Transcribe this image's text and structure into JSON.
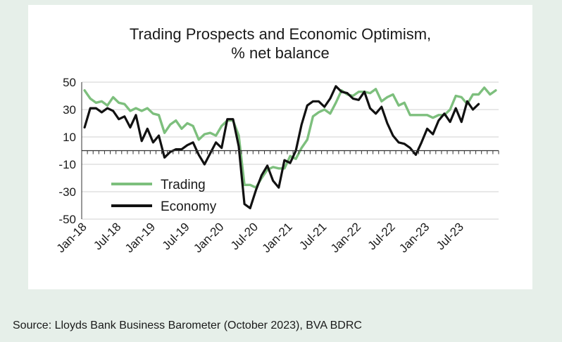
{
  "chart_data": {
    "type": "line",
    "title": [
      "Trading Prospects and Economic  Optimism,",
      "% net balance"
    ],
    "ylim": [
      -50,
      50
    ],
    "y_ticks": [
      50,
      30,
      10,
      -10,
      -30,
      -50
    ],
    "x_tick_labels": [
      "Jan-18",
      "Jul-18",
      "Jan-19",
      "Jul-19",
      "Jan-20",
      "Jul-20",
      "Jan-21",
      "Jul-21",
      "Jan-22",
      "Jul-22",
      "Jan-23",
      "Jul-23"
    ],
    "x_start": "Jan-18",
    "legend_position": "lower-left",
    "grid": "horizontal",
    "series": [
      {
        "name": "Trading",
        "color": "#7dbf7d",
        "values": [
          44,
          38,
          35,
          36,
          33,
          39,
          35,
          34,
          29,
          31,
          29,
          31,
          27,
          26,
          13,
          19,
          22,
          16,
          20,
          18,
          8,
          12,
          13,
          11,
          18,
          22,
          22,
          11,
          -25,
          -25,
          -27,
          -20,
          -14,
          -12,
          -13,
          -13,
          -4,
          -6,
          2,
          8,
          25,
          28,
          30,
          27,
          35,
          44,
          41,
          40,
          43,
          43,
          42,
          45,
          36,
          39,
          41,
          33,
          35,
          26,
          26,
          26,
          26,
          24,
          26,
          26,
          30,
          40,
          39,
          34,
          41,
          41,
          46,
          41,
          44
        ]
      },
      {
        "name": "Economy",
        "color": "#111111",
        "values": [
          17,
          31,
          31,
          28,
          31,
          29,
          23,
          25,
          17,
          26,
          7,
          16,
          6,
          11,
          -5,
          -1,
          1,
          1,
          4,
          6,
          -3,
          -10,
          -2,
          6,
          2,
          23,
          23,
          3,
          -39,
          -42,
          -29,
          -18,
          -11,
          -22,
          -27,
          -7,
          -9,
          0,
          19,
          33,
          36,
          36,
          32,
          38,
          47,
          43,
          42,
          38,
          37,
          43,
          31,
          27,
          32,
          20,
          11,
          6,
          5,
          2,
          -3,
          6,
          16,
          12,
          22,
          27,
          21,
          31,
          21,
          36,
          30,
          34
        ]
      }
    ]
  },
  "source": "Source: Lloyds Bank Business Barometer (October 2023), BVA BDRC"
}
